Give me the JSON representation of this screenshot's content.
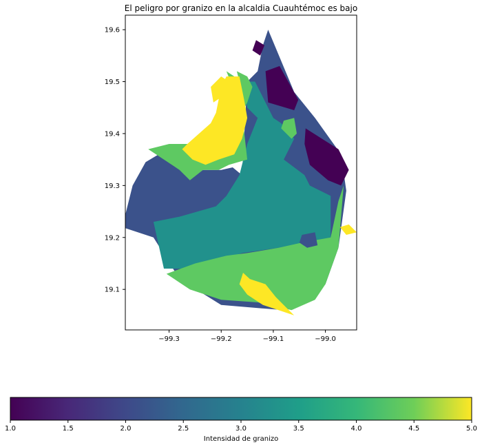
{
  "chart_data": {
    "type": "choropleth",
    "title": "El peligro por granizo en la alcaldia Cuauhtémoc es bajo",
    "x_ticks": [
      "−99.3",
      "−99.2",
      "−99.1",
      "−99.0"
    ],
    "x_tick_values": [
      -99.3,
      -99.2,
      -99.1,
      -99.0
    ],
    "y_ticks": [
      "19.1",
      "19.2",
      "19.3",
      "19.4",
      "19.5",
      "19.6"
    ],
    "y_tick_values": [
      19.1,
      19.2,
      19.3,
      19.4,
      19.5,
      19.6
    ],
    "xlim": [
      -99.384,
      -98.94
    ],
    "ylim": [
      19.022,
      19.628
    ],
    "colorbar": {
      "label": "Intensidad de granizo",
      "range": [
        1.0,
        5.0
      ],
      "ticks": [
        "1.0",
        "1.5",
        "2.0",
        "2.5",
        "3.0",
        "3.5",
        "4.0",
        "4.5",
        "5.0"
      ],
      "tick_values": [
        1.0,
        1.5,
        2.0,
        2.5,
        3.0,
        3.5,
        4.0,
        4.5,
        5.0
      ],
      "colormap": "viridis",
      "colors": [
        "#440154",
        "#3b528b",
        "#21918c",
        "#5ec962",
        "#fde725"
      ]
    },
    "regions": [
      {
        "value": 2.0,
        "polygon": [
          [
            -99.39,
            19.22
          ],
          [
            -99.37,
            19.3
          ],
          [
            -99.345,
            19.345
          ],
          [
            -99.32,
            19.36
          ],
          [
            -99.28,
            19.36
          ],
          [
            -99.265,
            19.32
          ],
          [
            -99.235,
            19.33
          ],
          [
            -99.2,
            19.33
          ],
          [
            -99.178,
            19.335
          ],
          [
            -99.16,
            19.32
          ],
          [
            -99.15,
            19.5
          ],
          [
            -99.13,
            19.52
          ],
          [
            -99.12,
            19.57
          ],
          [
            -99.11,
            19.6
          ],
          [
            -99.06,
            19.48
          ],
          [
            -99.02,
            19.43
          ],
          [
            -98.97,
            19.36
          ],
          [
            -98.96,
            19.29
          ],
          [
            -98.975,
            19.18
          ],
          [
            -99.0,
            19.11
          ],
          [
            -99.08,
            19.06
          ],
          [
            -99.2,
            19.07
          ],
          [
            -99.28,
            19.12
          ],
          [
            -99.33,
            19.2
          ]
        ]
      },
      {
        "value": 1.0,
        "polygon": [
          [
            -99.088,
            19.53
          ],
          [
            -99.052,
            19.465
          ],
          [
            -99.06,
            19.445
          ],
          [
            -99.11,
            19.46
          ],
          [
            -99.115,
            19.52
          ]
        ]
      },
      {
        "value": 1.0,
        "polygon": [
          [
            -99.133,
            19.58
          ],
          [
            -99.117,
            19.57
          ],
          [
            -99.125,
            19.55
          ],
          [
            -99.14,
            19.56
          ]
        ]
      },
      {
        "value": 1.0,
        "polygon": [
          [
            -99.038,
            19.41
          ],
          [
            -98.975,
            19.37
          ],
          [
            -98.955,
            19.33
          ],
          [
            -98.97,
            19.3
          ],
          [
            -98.995,
            19.31
          ],
          [
            -99.03,
            19.34
          ],
          [
            -99.04,
            19.38
          ]
        ]
      },
      {
        "value": 3.0,
        "polygon": [
          [
            -99.33,
            19.23
          ],
          [
            -99.28,
            19.24
          ],
          [
            -99.21,
            19.26
          ],
          [
            -99.19,
            19.28
          ],
          [
            -99.165,
            19.32
          ],
          [
            -99.15,
            19.38
          ],
          [
            -99.13,
            19.43
          ],
          [
            -99.15,
            19.45
          ],
          [
            -99.16,
            19.5
          ],
          [
            -99.135,
            19.5
          ],
          [
            -99.1,
            19.43
          ],
          [
            -99.085,
            19.42
          ],
          [
            -99.06,
            19.39
          ],
          [
            -99.08,
            19.35
          ],
          [
            -99.04,
            19.32
          ],
          [
            -99.03,
            19.3
          ],
          [
            -98.99,
            19.28
          ],
          [
            -98.99,
            19.2
          ],
          [
            -99.04,
            19.19
          ],
          [
            -99.09,
            19.18
          ],
          [
            -99.16,
            19.17
          ],
          [
            -99.25,
            19.14
          ],
          [
            -99.31,
            19.14
          ]
        ]
      },
      {
        "value": 4.0,
        "polygon": [
          [
            -99.305,
            19.13
          ],
          [
            -99.25,
            19.15
          ],
          [
            -99.19,
            19.165
          ],
          [
            -99.15,
            19.17
          ],
          [
            -99.09,
            19.18
          ],
          [
            -99.045,
            19.19
          ],
          [
            -98.99,
            19.2
          ],
          [
            -98.975,
            19.27
          ],
          [
            -98.965,
            19.3
          ],
          [
            -98.975,
            19.18
          ],
          [
            -99.0,
            19.11
          ],
          [
            -99.02,
            19.08
          ],
          [
            -99.065,
            19.06
          ],
          [
            -99.13,
            19.075
          ],
          [
            -99.2,
            19.08
          ],
          [
            -99.26,
            19.1
          ]
        ]
      },
      {
        "value": 4.0,
        "polygon": [
          [
            -99.34,
            19.37
          ],
          [
            -99.3,
            19.38
          ],
          [
            -99.265,
            19.38
          ],
          [
            -99.23,
            19.39
          ],
          [
            -99.21,
            19.38
          ],
          [
            -99.18,
            19.4
          ],
          [
            -99.17,
            19.44
          ],
          [
            -99.16,
            19.5
          ],
          [
            -99.19,
            19.52
          ],
          [
            -99.17,
            19.47
          ],
          [
            -99.16,
            19.44
          ],
          [
            -99.15,
            19.35
          ],
          [
            -99.185,
            19.34
          ],
          [
            -99.205,
            19.33
          ],
          [
            -99.235,
            19.33
          ],
          [
            -99.26,
            19.31
          ],
          [
            -99.28,
            19.33
          ],
          [
            -99.31,
            19.35
          ]
        ]
      },
      {
        "value": 4.0,
        "polygon": [
          [
            -99.08,
            19.425
          ],
          [
            -99.06,
            19.43
          ],
          [
            -99.055,
            19.4
          ],
          [
            -99.065,
            19.39
          ],
          [
            -99.085,
            19.41
          ]
        ]
      },
      {
        "value": 4.0,
        "polygon": [
          [
            -99.17,
            19.52
          ],
          [
            -99.15,
            19.51
          ],
          [
            -99.14,
            19.49
          ],
          [
            -99.15,
            19.46
          ],
          [
            -99.16,
            19.44
          ],
          [
            -99.165,
            19.5
          ]
        ]
      },
      {
        "value": 5.0,
        "polygon": [
          [
            -99.265,
            19.38
          ],
          [
            -99.22,
            19.42
          ],
          [
            -99.21,
            19.44
          ],
          [
            -99.2,
            19.49
          ],
          [
            -99.19,
            19.51
          ],
          [
            -99.165,
            19.51
          ],
          [
            -99.155,
            19.46
          ],
          [
            -99.15,
            19.43
          ],
          [
            -99.16,
            19.39
          ],
          [
            -99.175,
            19.36
          ],
          [
            -99.205,
            19.35
          ],
          [
            -99.23,
            19.34
          ],
          [
            -99.255,
            19.35
          ],
          [
            -99.275,
            19.37
          ]
        ]
      },
      {
        "value": 5.0,
        "polygon": [
          [
            -99.22,
            19.49
          ],
          [
            -99.2,
            19.51
          ],
          [
            -99.185,
            19.5
          ],
          [
            -99.2,
            19.47
          ],
          [
            -99.215,
            19.46
          ]
        ]
      },
      {
        "value": 5.0,
        "polygon": [
          [
            -99.158,
            19.132
          ],
          [
            -99.145,
            19.12
          ],
          [
            -99.115,
            19.11
          ],
          [
            -99.095,
            19.085
          ],
          [
            -99.075,
            19.065
          ],
          [
            -99.06,
            19.05
          ],
          [
            -99.09,
            19.06
          ],
          [
            -99.12,
            19.07
          ],
          [
            -99.15,
            19.09
          ],
          [
            -99.165,
            19.11
          ]
        ]
      },
      {
        "value": 5.0,
        "polygon": [
          [
            -98.972,
            19.22
          ],
          [
            -98.96,
            19.205
          ],
          [
            -98.94,
            19.21
          ],
          [
            -98.955,
            19.225
          ]
        ]
      },
      {
        "value": 2.0,
        "polygon": [
          [
            -99.045,
            19.205
          ],
          [
            -99.02,
            19.21
          ],
          [
            -99.015,
            19.185
          ],
          [
            -99.035,
            19.18
          ],
          [
            -99.05,
            19.19
          ]
        ]
      }
    ]
  }
}
